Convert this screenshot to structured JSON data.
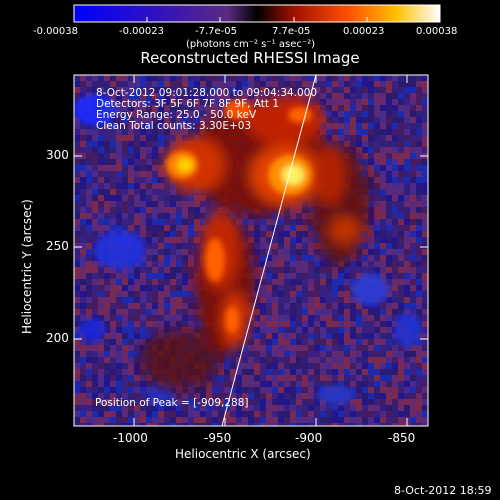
{
  "colorbar": {
    "ticks": [
      "-0.00038",
      "-0.00023",
      "-7.7e-05",
      "7.7e-05",
      "0.00023",
      "0.00038"
    ],
    "units": "(photons cm⁻² s⁻¹ asec⁻²)",
    "min": -0.00038,
    "max": 0.00038
  },
  "title": "Reconstructed RHESSI Image",
  "info": {
    "line1": "8-Oct-2012 09:01:28.000 to 09:04:34.000",
    "line2": "Detectors: 3F 5F 6F 7F 8F 9F, Att 1",
    "line3": "Energy Range: 25.0 - 50.0 keV",
    "line4": "Clean    Total counts: 3.30E+03"
  },
  "peak_label": "Position of Peak = [-909,288]",
  "axes": {
    "xlabel": "Heliocentric X (arcsec)",
    "ylabel": "Heliocentric Y (arcsec)",
    "xticks": [
      "-1000",
      "-950",
      "-900",
      "-850"
    ],
    "yticks": [
      "200",
      "250",
      "300"
    ],
    "xlim": [
      -1028,
      -835
    ],
    "ylim": [
      152,
      336
    ]
  },
  "timestamp": "8-Oct-2012 18:59",
  "colors": {
    "background": "#000000",
    "text": "#ffffff",
    "colormap_negative": "#0000ff",
    "colormap_positive": "#ffffff"
  }
}
